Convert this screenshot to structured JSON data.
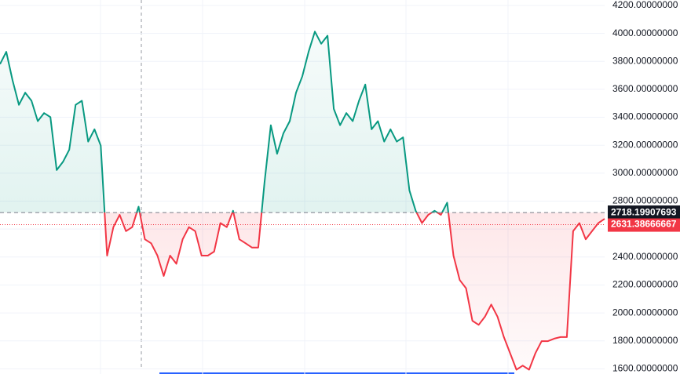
{
  "chart_data": {
    "type": "baseline",
    "series": [
      {
        "color_above": "#089981",
        "color_below": "#f23645",
        "values": [
          3780,
          3868,
          3664,
          3489,
          3576,
          3518,
          3372,
          3430,
          3401,
          3022,
          3081,
          3168,
          3489,
          3518,
          3226,
          3314,
          3197,
          2410,
          2614,
          2702,
          2585,
          2614,
          2760,
          2527,
          2498,
          2410,
          2264,
          2410,
          2352,
          2527,
          2614,
          2585,
          2410,
          2410,
          2439,
          2643,
          2614,
          2731,
          2527,
          2498,
          2468,
          2468,
          2935,
          3343,
          3139,
          3285,
          3372,
          3576,
          3693,
          3868,
          4013,
          3926,
          3984,
          3460,
          3343,
          3430,
          3372,
          3518,
          3634,
          3314,
          3372,
          3226,
          3314,
          3226,
          3256,
          2877,
          2731,
          2643,
          2702,
          2731,
          2702,
          2789,
          2410,
          2235,
          2177,
          1944,
          1915,
          1973,
          2060,
          1973,
          1827,
          1711,
          1594,
          1623,
          1594,
          1711,
          1798,
          1798,
          1816,
          1827,
          1827,
          2585,
          2643,
          2527,
          2585,
          2643,
          2673
        ]
      }
    ],
    "ylim": [
      1563,
      4239
    ],
    "yticks": [
      {
        "value": 1600,
        "label": "1600.00000000"
      },
      {
        "value": 1800,
        "label": "1800.00000000"
      },
      {
        "value": 2000,
        "label": "2000.00000000"
      },
      {
        "value": 2200,
        "label": "2200.00000000"
      },
      {
        "value": 2400,
        "label": "2400.00000000"
      },
      {
        "value": 2600,
        "label": "2600.00000000"
      },
      {
        "value": 2800,
        "label": "2800.00000000"
      },
      {
        "value": 3000,
        "label": "3000.00000000"
      },
      {
        "value": 3200,
        "label": "3200.00000000"
      },
      {
        "value": 3400,
        "label": "3400.00000000"
      },
      {
        "value": 3600,
        "label": "3600.00000000"
      },
      {
        "value": 3800,
        "label": "3800.00000000"
      },
      {
        "value": 4000,
        "label": "4000.00000000"
      },
      {
        "value": 4200,
        "label": "4200.00000000"
      }
    ],
    "baseline": 2718.19907693,
    "last_price": 2631.38666667,
    "grid": true
  }
}
